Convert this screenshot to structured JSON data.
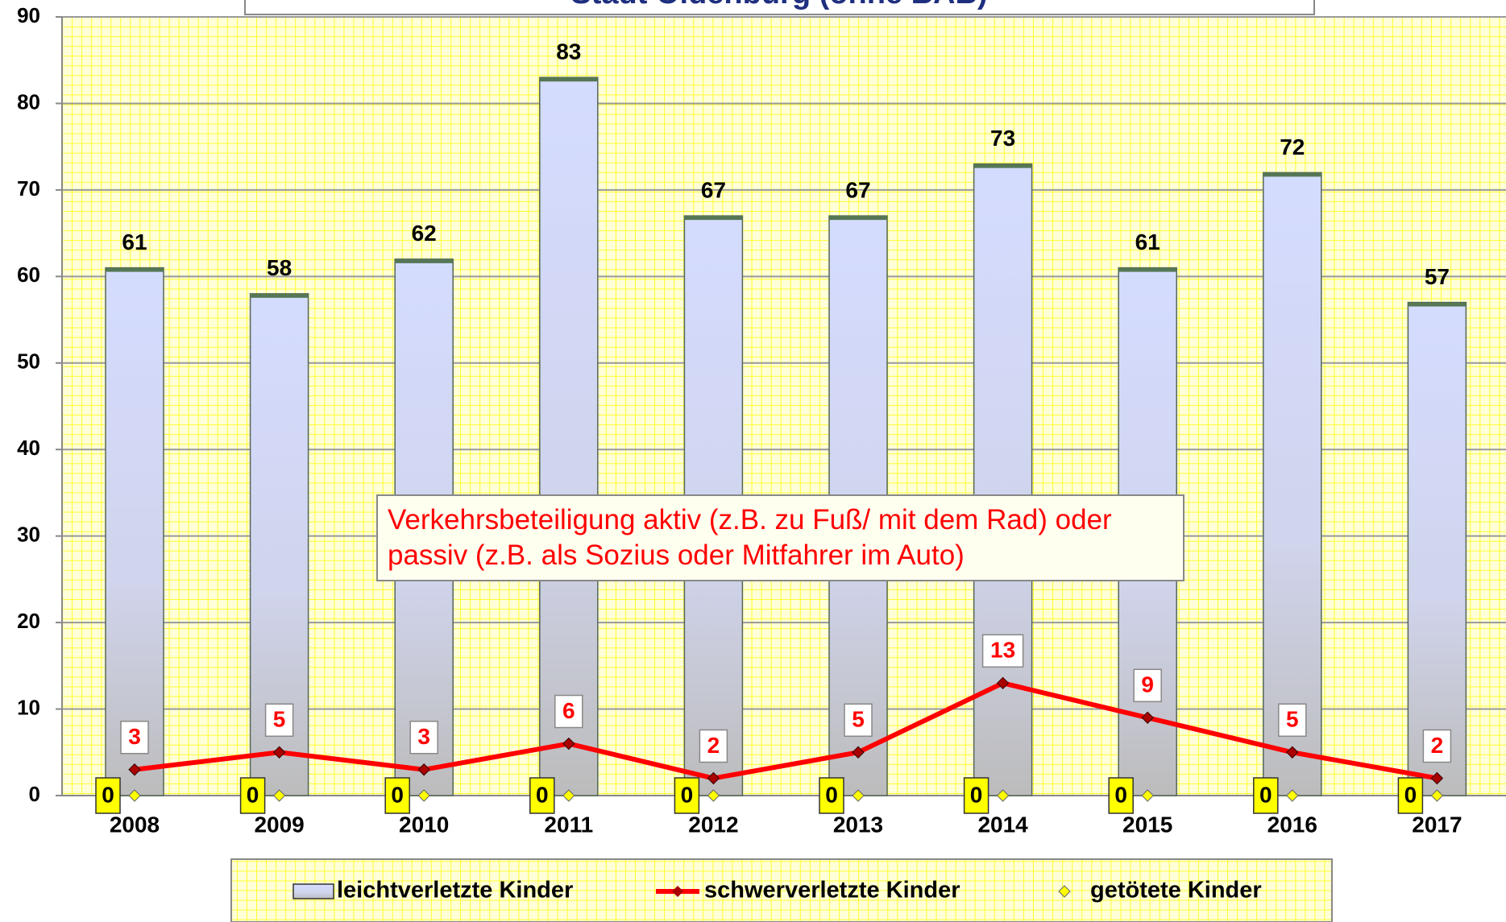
{
  "chart_data": {
    "type": "bar",
    "title": "Stadt Oldenburg (ohne BAB)",
    "annotation": "Verkehrsbeteiligung aktiv (z.B. zu Fuß/ mit dem Rad) oder passiv (z.B. als Sozius oder Mitfahrer im Auto)",
    "categories": [
      "2008",
      "2009",
      "2010",
      "2011",
      "2012",
      "2013",
      "2014",
      "2015",
      "2016",
      "2017"
    ],
    "series": [
      {
        "name": "leichtverletzte Kinder",
        "type": "bar",
        "color": "#d0d8ff",
        "values": [
          61,
          58,
          62,
          83,
          67,
          67,
          73,
          61,
          72,
          57
        ]
      },
      {
        "name": "schwerverletzte Kinder",
        "type": "line",
        "color": "#ff0000",
        "values": [
          3,
          5,
          3,
          6,
          2,
          5,
          13,
          9,
          5,
          2
        ]
      },
      {
        "name": "getötete Kinder",
        "type": "scatter",
        "color": "#ffff00",
        "values": [
          0,
          0,
          0,
          0,
          0,
          0,
          0,
          0,
          0,
          0
        ]
      }
    ],
    "ylim": [
      0,
      90
    ],
    "yticks": [
      0,
      10,
      20,
      30,
      40,
      50,
      60,
      70,
      80,
      90
    ],
    "grid": true,
    "legend": "bottom"
  }
}
